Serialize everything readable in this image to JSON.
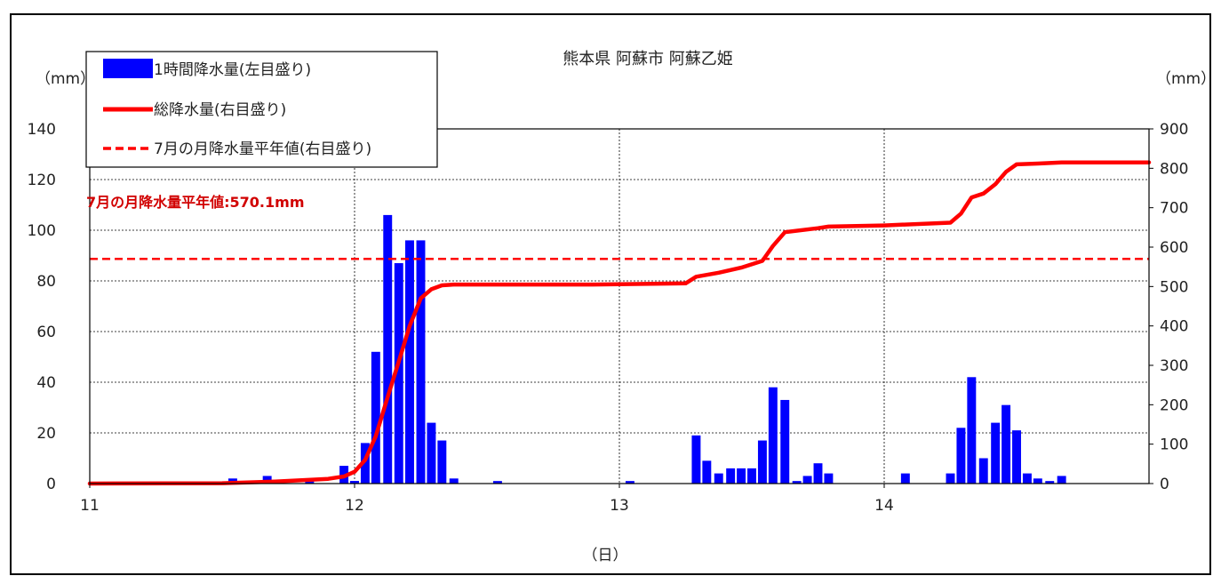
{
  "chart_data": {
    "type": "bar+line",
    "title": "熊本県 阿蘇市 阿蘇乙姫",
    "xlabel": "（日）",
    "left_axis_unit": "（mm）",
    "right_axis_unit": "（mm）",
    "x_ticks": [
      "11",
      "12",
      "13",
      "14"
    ],
    "x_range_days": [
      11,
      15
    ],
    "left_ylim": [
      0,
      140
    ],
    "left_ticks": [
      0,
      20,
      40,
      60,
      80,
      100,
      120,
      140
    ],
    "right_ylim": [
      0,
      900
    ],
    "right_ticks": [
      0,
      100,
      200,
      300,
      400,
      500,
      600,
      700,
      800,
      900
    ],
    "grid": true,
    "legend_position": "top-left",
    "legend": {
      "hourly": "1時間降水量(左目盛り)",
      "total": "総降水量(右目盛り)",
      "normal": "7月の月降水量平年値(右目盛り)"
    },
    "annotation": "7月の月降水量平年値:570.1mm",
    "normal_value": 570.1,
    "colors": {
      "bar": "#0000ff",
      "total": "#ff0000",
      "normal": "#ff0000"
    },
    "series_hourly": {
      "name": "1時間降水量(左目盛り)",
      "points": [
        {
          "x": 11.54,
          "y": 2
        },
        {
          "x": 11.67,
          "y": 3
        },
        {
          "x": 11.83,
          "y": 1
        },
        {
          "x": 11.96,
          "y": 7
        },
        {
          "x": 12.0,
          "y": 1
        },
        {
          "x": 12.0,
          "y": 1
        },
        {
          "x": 12.0,
          "y": 0
        },
        {
          "x": 12.0,
          "y": 0
        },
        {
          "x": 12.0,
          "y": 0
        },
        {
          "x": 12.0,
          "y": 0
        },
        {
          "x": 12.0,
          "y": 0
        },
        {
          "x": 12.0,
          "y": 0
        },
        {
          "x": 12.04,
          "y": 16
        },
        {
          "x": 12.08,
          "y": 52
        },
        {
          "x": 12.125,
          "y": 106
        },
        {
          "x": 12.167,
          "y": 87
        },
        {
          "x": 12.208,
          "y": 96
        },
        {
          "x": 12.25,
          "y": 96
        },
        {
          "x": 12.29,
          "y": 24
        },
        {
          "x": 12.33,
          "y": 17
        },
        {
          "x": 12.375,
          "y": 2
        },
        {
          "x": 12.54,
          "y": 1
        },
        {
          "x": 13.04,
          "y": 1
        },
        {
          "x": 13.29,
          "y": 19
        },
        {
          "x": 13.33,
          "y": 9
        },
        {
          "x": 13.375,
          "y": 4
        },
        {
          "x": 13.42,
          "y": 6
        },
        {
          "x": 13.46,
          "y": 6
        },
        {
          "x": 13.5,
          "y": 6
        },
        {
          "x": 13.54,
          "y": 17
        },
        {
          "x": 13.58,
          "y": 38
        },
        {
          "x": 13.625,
          "y": 33
        },
        {
          "x": 13.67,
          "y": 1
        },
        {
          "x": 13.71,
          "y": 3
        },
        {
          "x": 13.75,
          "y": 8
        },
        {
          "x": 13.79,
          "y": 4
        },
        {
          "x": 14.08,
          "y": 4
        },
        {
          "x": 14.25,
          "y": 4
        },
        {
          "x": 14.29,
          "y": 22
        },
        {
          "x": 14.33,
          "y": 42
        },
        {
          "x": 14.375,
          "y": 10
        },
        {
          "x": 14.42,
          "y": 24
        },
        {
          "x": 14.46,
          "y": 31
        },
        {
          "x": 14.5,
          "y": 21
        },
        {
          "x": 14.54,
          "y": 4
        },
        {
          "x": 14.58,
          "y": 2
        },
        {
          "x": 14.625,
          "y": 1
        },
        {
          "x": 14.67,
          "y": 3
        }
      ]
    },
    "series_total": {
      "name": "総降水量(右目盛り)",
      "points": [
        {
          "x": 11.0,
          "y": 0
        },
        {
          "x": 11.5,
          "y": 1
        },
        {
          "x": 11.7,
          "y": 5
        },
        {
          "x": 11.9,
          "y": 12
        },
        {
          "x": 11.96,
          "y": 18
        },
        {
          "x": 12.0,
          "y": 30
        },
        {
          "x": 12.04,
          "y": 60
        },
        {
          "x": 12.08,
          "y": 120
        },
        {
          "x": 12.125,
          "y": 220
        },
        {
          "x": 12.167,
          "y": 310
        },
        {
          "x": 12.208,
          "y": 400
        },
        {
          "x": 12.25,
          "y": 470
        },
        {
          "x": 12.29,
          "y": 493
        },
        {
          "x": 12.33,
          "y": 503
        },
        {
          "x": 12.375,
          "y": 505
        },
        {
          "x": 12.9,
          "y": 505
        },
        {
          "x": 13.25,
          "y": 508
        },
        {
          "x": 13.29,
          "y": 525
        },
        {
          "x": 13.375,
          "y": 535
        },
        {
          "x": 13.46,
          "y": 548
        },
        {
          "x": 13.54,
          "y": 565
        },
        {
          "x": 13.58,
          "y": 603
        },
        {
          "x": 13.625,
          "y": 638
        },
        {
          "x": 13.75,
          "y": 648
        },
        {
          "x": 13.79,
          "y": 652
        },
        {
          "x": 14.0,
          "y": 655
        },
        {
          "x": 14.25,
          "y": 662
        },
        {
          "x": 14.29,
          "y": 685
        },
        {
          "x": 14.33,
          "y": 726
        },
        {
          "x": 14.375,
          "y": 736
        },
        {
          "x": 14.42,
          "y": 760
        },
        {
          "x": 14.46,
          "y": 791
        },
        {
          "x": 14.5,
          "y": 810
        },
        {
          "x": 14.58,
          "y": 812
        },
        {
          "x": 14.67,
          "y": 815
        },
        {
          "x": 15.0,
          "y": 815
        }
      ]
    }
  }
}
